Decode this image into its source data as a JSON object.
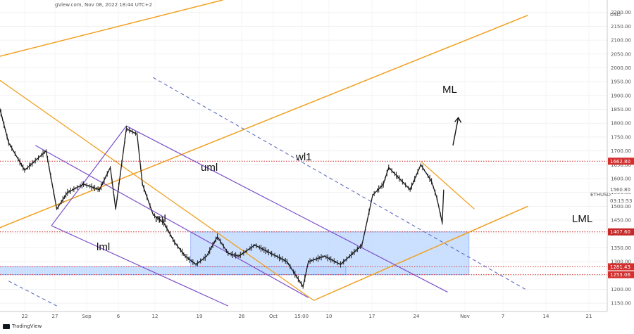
{
  "watermark": "gView.com, Nov 08, 2022 18:44 UTC+2",
  "branding": "TradingView",
  "symbol_label": "ETHUSD",
  "current_price_label": "1560.80",
  "countdown_label": "03:15:53",
  "currency_label": "USD",
  "chart_data": {
    "type": "candlestick",
    "title": "",
    "ylabel": "USD",
    "ylim": [
      1120,
      2245
    ],
    "y_ticks": [
      2200,
      2150,
      2100,
      2050,
      2000,
      1950,
      1900,
      1850,
      1800,
      1750,
      1700,
      1650,
      1600,
      1550,
      1500,
      1450,
      1400,
      1350,
      1300,
      1250,
      1200,
      1150
    ],
    "x_tick_labels": [
      "22",
      "27",
      "Sep",
      "6",
      "12",
      "19",
      "26",
      "Oct",
      "15:00",
      "10",
      "17",
      "24",
      "Nov",
      "7",
      "14",
      "21"
    ],
    "price_path": [
      {
        "date": "2022-08-17",
        "price": 1880
      },
      {
        "date": "2022-08-19",
        "price": 1730
      },
      {
        "date": "2022-08-22",
        "price": 1630
      },
      {
        "date": "2022-08-26",
        "price": 1700
      },
      {
        "date": "2022-08-28",
        "price": 1490
      },
      {
        "date": "2022-08-30",
        "price": 1550
      },
      {
        "date": "2022-09-02",
        "price": 1580
      },
      {
        "date": "2022-09-05",
        "price": 1560
      },
      {
        "date": "2022-09-07",
        "price": 1640
      },
      {
        "date": "2022-09-08",
        "price": 1490
      },
      {
        "date": "2022-09-10",
        "price": 1780
      },
      {
        "date": "2022-09-12",
        "price": 1760
      },
      {
        "date": "2022-09-13",
        "price": 1580
      },
      {
        "date": "2022-09-15",
        "price": 1470
      },
      {
        "date": "2022-09-17",
        "price": 1440
      },
      {
        "date": "2022-09-19",
        "price": 1370
      },
      {
        "date": "2022-09-21",
        "price": 1320
      },
      {
        "date": "2022-09-23",
        "price": 1290
      },
      {
        "date": "2022-09-25",
        "price": 1320
      },
      {
        "date": "2022-09-27",
        "price": 1390
      },
      {
        "date": "2022-09-29",
        "price": 1330
      },
      {
        "date": "2022-10-01",
        "price": 1320
      },
      {
        "date": "2022-10-04",
        "price": 1360
      },
      {
        "date": "2022-10-06",
        "price": 1340
      },
      {
        "date": "2022-10-10",
        "price": 1300
      },
      {
        "date": "2022-10-13",
        "price": 1210
      },
      {
        "date": "2022-10-14",
        "price": 1300
      },
      {
        "date": "2022-10-17",
        "price": 1320
      },
      {
        "date": "2022-10-20",
        "price": 1290
      },
      {
        "date": "2022-10-24",
        "price": 1360
      },
      {
        "date": "2022-10-25",
        "price": 1450
      },
      {
        "date": "2022-10-26",
        "price": 1540
      },
      {
        "date": "2022-10-28",
        "price": 1580
      },
      {
        "date": "2022-10-29",
        "price": 1640
      },
      {
        "date": "2022-11-02",
        "price": 1560
      },
      {
        "date": "2022-11-04",
        "price": 1650
      },
      {
        "date": "2022-11-05",
        "price": 1620
      },
      {
        "date": "2022-11-06",
        "price": 1590
      },
      {
        "date": "2022-11-07",
        "price": 1530
      },
      {
        "date": "2022-11-08",
        "price": 1440
      },
      {
        "date": "2022-11-08",
        "price": 1560
      }
    ],
    "levels": [
      {
        "value": 1662.8,
        "label": "1662.80",
        "color": "#d32f2f",
        "style": "dotted"
      },
      {
        "value": 1407.6,
        "label": "1407.60",
        "color": "#c62828",
        "style": "dotted"
      },
      {
        "value": 1281.43,
        "label": "1281.43",
        "color": "#d32f2f",
        "style": "dotted"
      },
      {
        "value": 1253.06,
        "label": "1253.06",
        "color": "#d32f2f",
        "style": "dotted"
      }
    ],
    "zones": [
      {
        "name": "range-zone-upper",
        "from_date": "2022-09-22",
        "to_date": "2022-11-13",
        "low": 1253.06,
        "high": 1407.6,
        "color": "#b9d5ff"
      },
      {
        "name": "range-zone-lower",
        "from_date": "2022-08-17",
        "to_date": "2022-10-21",
        "low": 1253.06,
        "high": 1281.43,
        "color": "#b9d5ff"
      }
    ],
    "pitchfork_orange": {
      "color": "#f0a020",
      "labels": [
        "ML",
        "LML"
      ],
      "ml": [
        {
          "date": "2022-08-17",
          "price": 1420
        },
        {
          "date": "2022-11-24",
          "price": 2190
        }
      ],
      "uml": [
        {
          "date": "2022-08-17",
          "price": 2040
        },
        {
          "date": "2022-09-28",
          "price": 2245
        }
      ],
      "lml": [
        {
          "date": "2022-10-15",
          "price": 1160
        },
        {
          "date": "2022-11-24",
          "price": 1500
        }
      ]
    },
    "pitchfork_purple": {
      "color": "#7b4fc9",
      "labels": [
        "uml",
        "ml",
        "lml"
      ],
      "ml": [
        {
          "date": "2022-08-27",
          "price": 1430
        },
        {
          "date": "2022-09-10",
          "price": 1790
        }
      ],
      "lines": [
        [
          {
            "date": "2022-09-10",
            "price": 1790
          },
          {
            "date": "2022-11-09",
            "price": 1190
          }
        ],
        [
          {
            "date": "2022-08-24",
            "price": 1720
          },
          {
            "date": "2022-10-14",
            "price": 1170
          }
        ],
        [
          {
            "date": "2022-08-27",
            "price": 1430
          },
          {
            "date": "2022-09-29",
            "price": 1140
          }
        ]
      ]
    },
    "warning_line_1": {
      "label": "wl1",
      "color": "#5c6bc0",
      "style": "dashed",
      "points": [
        {
          "date": "2022-09-15",
          "price": 1965
        },
        {
          "date": "2022-11-24",
          "price": 1195
        }
      ]
    },
    "lower_dashed": {
      "color": "#5c6bc0",
      "style": "dashed",
      "points": [
        {
          "date": "2022-08-19",
          "price": 1230
        },
        {
          "date": "2022-08-28",
          "price": 1140
        }
      ]
    },
    "orange_diagonal": {
      "color": "#f0a020",
      "points": [
        {
          "date": "2022-08-17",
          "price": 1960
        },
        {
          "date": "2022-10-15",
          "price": 1160
        }
      ]
    },
    "short_downtrend": {
      "color": "#f0a020",
      "points": [
        {
          "date": "2022-11-04",
          "price": 1662
        },
        {
          "date": "2022-11-14",
          "price": 1490
        }
      ]
    },
    "arrow": {
      "direction": "up",
      "from": {
        "date": "2022-11-10",
        "price": 1720
      },
      "to": {
        "date": "2022-11-11",
        "price": 1820
      }
    }
  }
}
